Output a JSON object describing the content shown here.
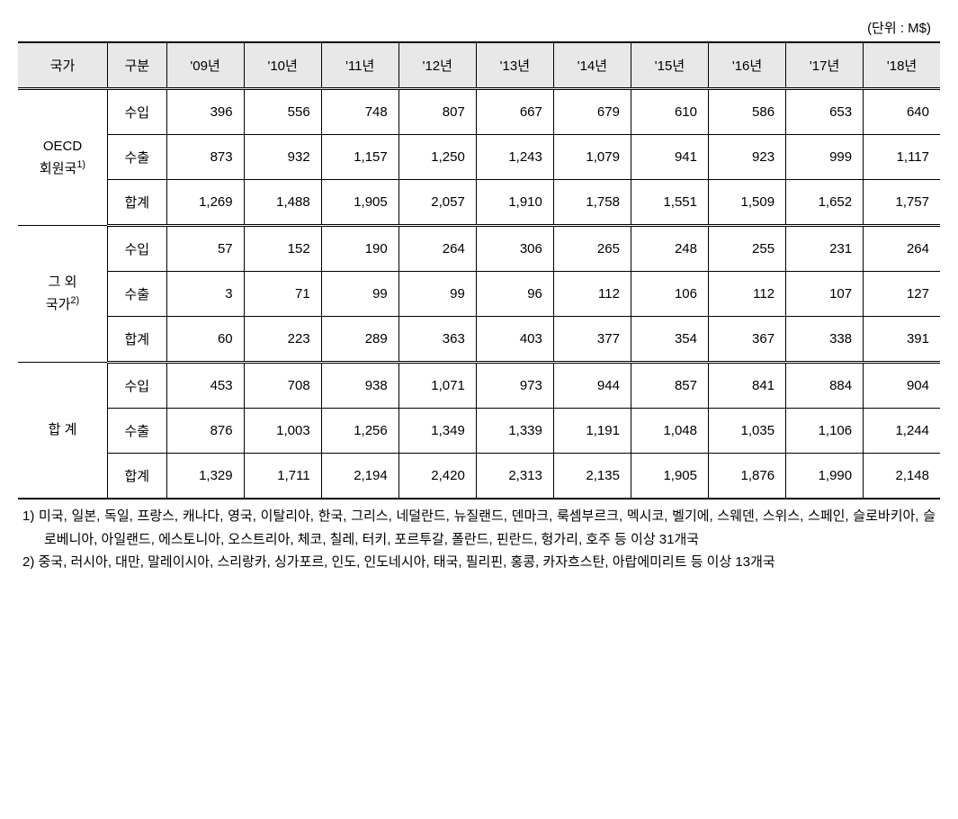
{
  "unit_label": "(단위 : M$)",
  "headers": {
    "country": "국가",
    "category": "구분",
    "years": [
      "'09년",
      "'10년",
      "'11년",
      "'12년",
      "'13년",
      "'14년",
      "'15년",
      "'16년",
      "'17년",
      "'18년"
    ]
  },
  "groups": [
    {
      "label_line1": "OECD",
      "label_line2": "회원국",
      "superscript": "1)",
      "rows": [
        {
          "category": "수입",
          "values": [
            "396",
            "556",
            "748",
            "807",
            "667",
            "679",
            "610",
            "586",
            "653",
            "640"
          ]
        },
        {
          "category": "수출",
          "values": [
            "873",
            "932",
            "1,157",
            "1,250",
            "1,243",
            "1,079",
            "941",
            "923",
            "999",
            "1,117"
          ]
        },
        {
          "category": "합계",
          "values": [
            "1,269",
            "1,488",
            "1,905",
            "2,057",
            "1,910",
            "1,758",
            "1,551",
            "1,509",
            "1,652",
            "1,757"
          ]
        }
      ]
    },
    {
      "label_line1": "그 외",
      "label_line2": "국가",
      "superscript": "2)",
      "rows": [
        {
          "category": "수입",
          "values": [
            "57",
            "152",
            "190",
            "264",
            "306",
            "265",
            "248",
            "255",
            "231",
            "264"
          ]
        },
        {
          "category": "수출",
          "values": [
            "3",
            "71",
            "99",
            "99",
            "96",
            "112",
            "106",
            "112",
            "107",
            "127"
          ]
        },
        {
          "category": "합계",
          "values": [
            "60",
            "223",
            "289",
            "363",
            "403",
            "377",
            "354",
            "367",
            "338",
            "391"
          ]
        }
      ]
    },
    {
      "label_line1": "합 계",
      "label_line2": "",
      "superscript": "",
      "rows": [
        {
          "category": "수입",
          "values": [
            "453",
            "708",
            "938",
            "1,071",
            "973",
            "944",
            "857",
            "841",
            "884",
            "904"
          ]
        },
        {
          "category": "수출",
          "values": [
            "876",
            "1,003",
            "1,256",
            "1,349",
            "1,339",
            "1,191",
            "1,048",
            "1,035",
            "1,106",
            "1,244"
          ]
        },
        {
          "category": "합계",
          "values": [
            "1,329",
            "1,711",
            "2,194",
            "2,420",
            "2,313",
            "2,135",
            "1,905",
            "1,876",
            "1,990",
            "2,148"
          ]
        }
      ]
    }
  ],
  "footnotes": [
    "1) 미국, 일본, 독일, 프랑스, 캐나다, 영국, 이탈리아, 한국, 그리스, 네덜란드, 뉴질랜드, 덴마크, 룩셈부르크, 멕시코, 벨기에, 스웨덴, 스위스, 스페인, 슬로바키아, 슬로베니아, 아일랜드, 에스토니아, 오스트리아, 체코, 칠레, 터키, 포르투갈, 폴란드, 핀란드, 헝가리, 호주 등 이상 31개국",
    "2) 중국, 러시아, 대만, 말레이시아, 스리랑카, 싱가포르, 인도, 인도네시아, 태국, 필리핀, 홍콩, 카자흐스탄, 아랍에미리트 등 이상 13개국"
  ],
  "styling": {
    "header_bg_color": "#e8e8e8",
    "border_color": "#000000",
    "background_color": "#ffffff",
    "font_family": "Malgun Gothic",
    "header_fontsize": 15,
    "cell_fontsize": 15,
    "footnote_fontsize": 15
  }
}
